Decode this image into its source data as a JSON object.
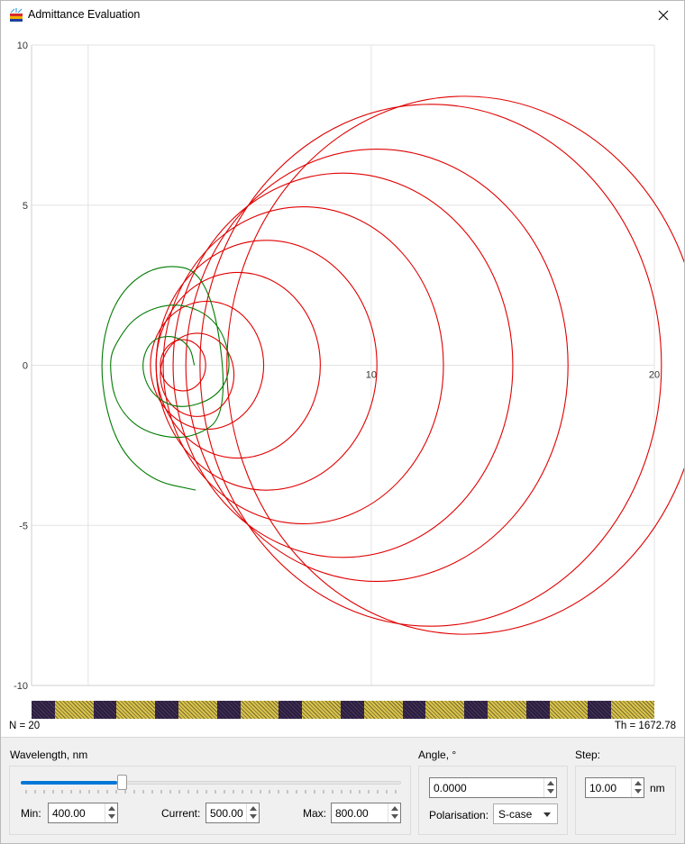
{
  "window": {
    "title": "Admittance Evaluation"
  },
  "chart_data": {
    "type": "line",
    "title": "",
    "xlabel": "",
    "ylabel": "",
    "xlim": [
      -2,
      20
    ],
    "ylim": [
      -10,
      10
    ],
    "x_ticks": [
      "0",
      "10",
      "20"
    ],
    "y_ticks": [
      "10",
      "5",
      "0",
      "-5",
      "-10"
    ],
    "grid": true,
    "colors": {
      "red_series": "#e00000",
      "green_series": "#007a00"
    },
    "series": [
      {
        "color": "red",
        "circles_center_radius": [
          [
            3.35,
            0.0,
            0.8
          ],
          [
            3.85,
            -0.3,
            1.3
          ],
          [
            4.2,
            0.0,
            2.0
          ],
          [
            5.3,
            0.0,
            2.9
          ],
          [
            6.3,
            0.0,
            3.9
          ],
          [
            7.6,
            0.0,
            4.95
          ],
          [
            9.0,
            0.0,
            6.0
          ],
          [
            10.2,
            0.0,
            6.75
          ],
          [
            12.1,
            0.0,
            8.15
          ],
          [
            13.3,
            0.0,
            8.4
          ]
        ]
      },
      {
        "color": "green",
        "spiral_points": [
          [
            3.75,
            0.0
          ],
          [
            3.6,
            0.6
          ],
          [
            3.0,
            0.95
          ],
          [
            2.2,
            0.8
          ],
          [
            1.85,
            0.0
          ],
          [
            2.2,
            -0.9
          ],
          [
            3.2,
            -1.4
          ],
          [
            4.6,
            -1.0
          ],
          [
            5.1,
            0.0
          ],
          [
            4.6,
            1.4
          ],
          [
            3.2,
            2.0
          ],
          [
            1.7,
            1.6
          ],
          [
            0.9,
            0.6
          ],
          [
            0.75,
            0.0
          ],
          [
            0.95,
            -1.2
          ],
          [
            1.9,
            -2.1
          ],
          [
            3.6,
            -2.35
          ],
          [
            5.0,
            -1.5
          ],
          [
            4.3,
            2.9
          ],
          [
            2.4,
            3.2
          ],
          [
            0.9,
            2.1
          ],
          [
            0.35,
            0.0
          ],
          [
            0.9,
            -2.4
          ],
          [
            2.2,
            -3.6
          ],
          [
            3.8,
            -3.9
          ]
        ]
      }
    ]
  },
  "design": {
    "layer_colors": [
      "#2b1d40",
      "#d7c34a"
    ],
    "n_label": "N = 20",
    "th_label": "Th = 1672.78"
  },
  "controls": {
    "wavelength": {
      "group_label": "Wavelength, nm",
      "slider_fraction": 0.25,
      "min_label": "Min:",
      "min_value": "400.00",
      "current_label": "Current:",
      "current_value": "500.00",
      "max_label": "Max:",
      "max_value": "800.00"
    },
    "angle": {
      "group_label": "Angle, °",
      "value": "0.0000",
      "polarisation_label": "Polarisation:",
      "polarisation_value": "S-case"
    },
    "step": {
      "group_label": "Step:",
      "value": "10.00",
      "unit": "nm"
    }
  }
}
